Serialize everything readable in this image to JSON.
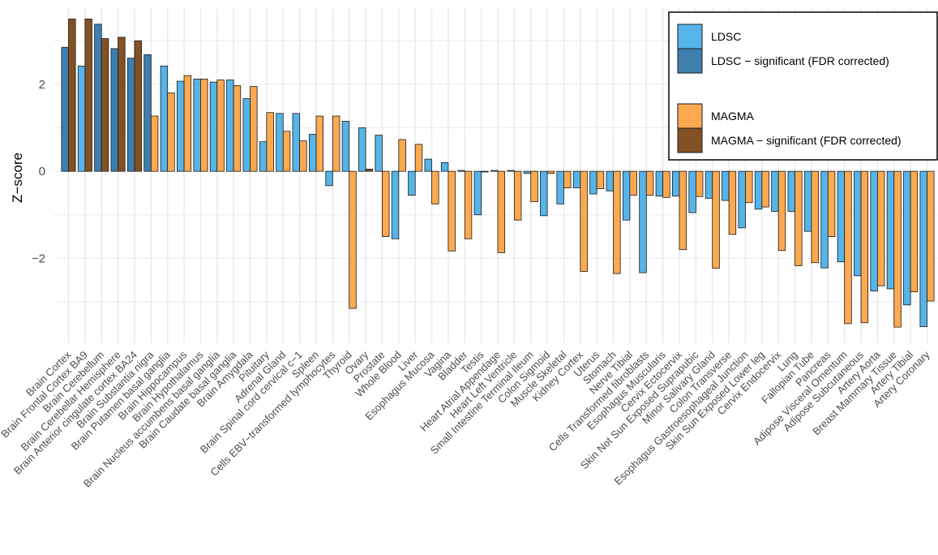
{
  "chart_data": {
    "type": "bar",
    "ylabel": "Z−score",
    "ylim": [
      -3.95,
      3.75
    ],
    "yticks": [
      -2,
      0,
      2
    ],
    "grid": true,
    "legend_position": "top-right",
    "categories": [
      "Brain Cortex",
      "Brain Frontal Cortex BA9",
      "Brain Cerebellum",
      "Brain Cerebellar Hemisphere",
      "Brain Anterior cingulate cortex BA24",
      "Brain Substantia nigra",
      "Brain Putamen basal ganglia",
      "Brain Hippocampus",
      "Brain Hypothalamus",
      "Brain Nucleus accumbens basal ganglia",
      "Brain Caudate basal ganglia",
      "Brain Amygdala",
      "Pituitary",
      "Adrenal Gland",
      "Brain Spinal cord cervical c−1",
      "Spleen",
      "Cells EBV−transformed lymphocytes",
      "Thyroid",
      "Ovary",
      "Prostate",
      "Whole Blood",
      "Liver",
      "Esophagus Mucosa",
      "Vagina",
      "Bladder",
      "Testis",
      "Heart Atrial Appendage",
      "Heart Left Ventricle",
      "Small Intestine Terminal Ileum",
      "Colon Sigmoid",
      "Muscle Skeletal",
      "Kidney Cortex",
      "Uterus",
      "Stomach",
      "Nerve Tibial",
      "Cells Transformed fibroblasts",
      "Esophagus Muscularis",
      "Cervix Ectocervix",
      "Skin Not Sun Exposed Suprapubic",
      "Minor Salivary Gland",
      "Colon Transverse",
      "Esophagus Gastroesophageal Junction",
      "Skin Sun Exposed Lower leg",
      "Cervix Endocervix",
      "Lung",
      "Fallopian Tube",
      "Pancreas",
      "Adipose Visceral Omentum",
      "Adipose Subcutaneous",
      "Artery Aorta",
      "Breast Mammary Tissue",
      "Artery Tibial",
      "Artery Coronary"
    ],
    "series": [
      {
        "name": "LDSC",
        "values": [
          2.85,
          2.42,
          3.38,
          2.82,
          2.6,
          2.68,
          2.42,
          2.07,
          2.12,
          2.05,
          2.1,
          1.67,
          0.68,
          1.33,
          1.33,
          0.85,
          -0.33,
          1.15,
          1.0,
          0.83,
          -1.55,
          -0.55,
          0.28,
          0.2,
          0.02,
          -1.0,
          0.02,
          0.02,
          -0.05,
          -1.02,
          -0.75,
          -0.38,
          -0.52,
          -0.45,
          -1.12,
          -2.33,
          -0.57,
          -0.57,
          -0.95,
          -0.62,
          -0.67,
          -1.3,
          -0.87,
          -0.92,
          -0.92,
          -1.38,
          -2.22,
          -2.08,
          -2.4,
          -2.75,
          -2.7,
          -3.07,
          -3.57
        ],
        "significant": [
          true,
          false,
          true,
          true,
          true,
          true,
          false,
          false,
          false,
          false,
          false,
          false,
          false,
          false,
          false,
          false,
          false,
          false,
          false,
          false,
          false,
          false,
          false,
          false,
          false,
          false,
          false,
          false,
          false,
          false,
          false,
          false,
          false,
          false,
          false,
          false,
          false,
          false,
          false,
          false,
          false,
          false,
          false,
          false,
          false,
          false,
          false,
          false,
          false,
          false,
          false,
          false,
          false
        ]
      },
      {
        "name": "MAGMA",
        "values": [
          3.5,
          3.5,
          3.05,
          3.08,
          3.0,
          1.27,
          1.8,
          2.2,
          2.12,
          2.1,
          1.97,
          1.95,
          1.35,
          0.92,
          0.7,
          1.27,
          1.27,
          -3.15,
          0.05,
          -1.5,
          0.73,
          0.62,
          -0.75,
          -1.83,
          -1.55,
          0.0,
          -1.87,
          -1.12,
          -0.7,
          -0.05,
          -0.38,
          -2.3,
          -0.4,
          -2.35,
          -0.55,
          -0.55,
          -0.6,
          -1.8,
          -0.58,
          -2.23,
          -1.45,
          -0.72,
          -0.82,
          -1.82,
          -2.17,
          -2.1,
          -1.5,
          -3.5,
          -3.48,
          -2.63,
          -3.58,
          -2.77,
          -2.98
        ],
        "significant": [
          true,
          true,
          true,
          true,
          true,
          false,
          false,
          false,
          false,
          false,
          false,
          false,
          false,
          false,
          false,
          false,
          false,
          false,
          true,
          false,
          false,
          false,
          false,
          false,
          false,
          false,
          false,
          false,
          false,
          false,
          false,
          false,
          false,
          false,
          false,
          false,
          false,
          false,
          false,
          false,
          false,
          false,
          false,
          false,
          false,
          false,
          false,
          false,
          false,
          false,
          false,
          false,
          false
        ]
      }
    ],
    "legend": [
      {
        "label": "LDSC",
        "color": "#56B4E9"
      },
      {
        "label": "LDSC − significant (FDR corrected)",
        "color": "#3E7FB0"
      },
      {
        "label": "MAGMA",
        "color": "#FCA950"
      },
      {
        "label": "MAGMA − significant (FDR corrected)",
        "color": "#845125"
      }
    ],
    "colors": {
      "ldsc": "#56B4E9",
      "ldsc_sig": "#3E7FB0",
      "magma": "#FCA950",
      "magma_sig": "#845125",
      "grid": "#EBEBEB",
      "bar_stroke": "#1a1a1a"
    }
  }
}
